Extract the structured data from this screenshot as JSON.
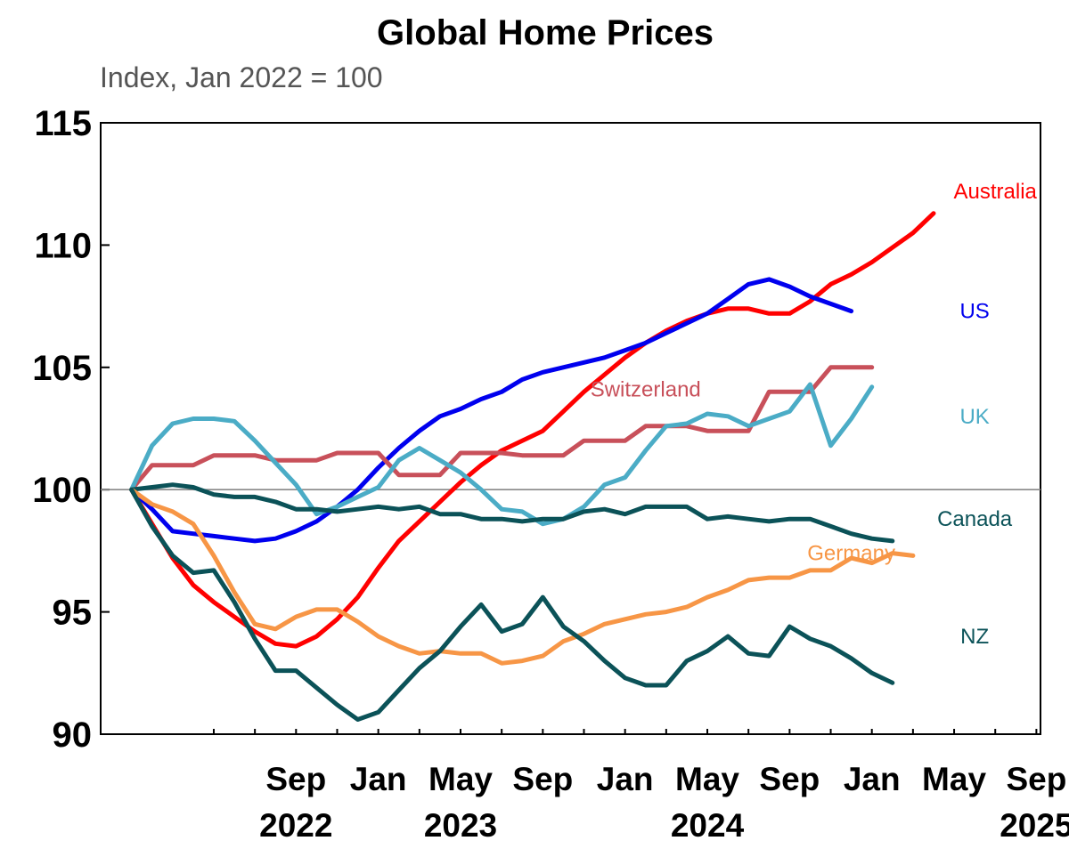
{
  "chart_data": {
    "type": "line",
    "title": "Global Home Prices",
    "subtitle": "Index, Jan 2022 = 100",
    "xlabel": "",
    "ylabel": "",
    "ylim": [
      90,
      115
    ],
    "yticks": [
      "90",
      "95",
      "100",
      "105",
      "110",
      "115"
    ],
    "ytick_values": [
      90,
      95,
      100,
      105,
      110,
      115
    ],
    "reference_line": 100,
    "grid": false,
    "legend": "inline labels at line ends",
    "x_start": "2022-05",
    "x_end": "2025-09",
    "xtick_labels": [
      {
        "month": "Sep",
        "year": "2022",
        "date": "2022-09"
      },
      {
        "month": "Jan",
        "year": "",
        "date": "2023-01"
      },
      {
        "month": "May",
        "year": "2023",
        "date": "2023-05"
      },
      {
        "month": "Sep",
        "year": "",
        "date": "2023-09"
      },
      {
        "month": "Jan",
        "year": "",
        "date": "2024-01"
      },
      {
        "month": "May",
        "year": "2024",
        "date": "2024-05"
      },
      {
        "month": "Sep",
        "year": "",
        "date": "2024-09"
      },
      {
        "month": "Jan",
        "year": "",
        "date": "2025-01"
      },
      {
        "month": "May",
        "year": "",
        "date": "2025-05"
      },
      {
        "month": "Sep",
        "year": "2025",
        "date": "2025-09"
      }
    ],
    "series": [
      {
        "name": "Australia",
        "color": "#ff0000",
        "label_at": "2025-07",
        "label_value": 112.2,
        "points": [
          [
            "2022-01",
            100
          ],
          [
            "2022-02",
            98.6
          ],
          [
            "2022-03",
            97.2
          ],
          [
            "2022-04",
            96.1
          ],
          [
            "2022-05",
            95.4
          ],
          [
            "2022-06",
            94.8
          ],
          [
            "2022-07",
            94.2
          ],
          [
            "2022-08",
            93.7
          ],
          [
            "2022-09",
            93.6
          ],
          [
            "2022-10",
            94.0
          ],
          [
            "2022-11",
            94.7
          ],
          [
            "2022-12",
            95.6
          ],
          [
            "2023-01",
            96.8
          ],
          [
            "2023-02",
            97.9
          ],
          [
            "2023-03",
            98.7
          ],
          [
            "2023-04",
            99.5
          ],
          [
            "2023-05",
            100.3
          ],
          [
            "2023-06",
            101.0
          ],
          [
            "2023-07",
            101.6
          ],
          [
            "2023-08",
            102.0
          ],
          [
            "2023-09",
            102.4
          ],
          [
            "2023-10",
            103.2
          ],
          [
            "2023-11",
            104.0
          ],
          [
            "2023-12",
            104.7
          ],
          [
            "2024-01",
            105.4
          ],
          [
            "2024-02",
            106.0
          ],
          [
            "2024-03",
            106.5
          ],
          [
            "2024-04",
            106.9
          ],
          [
            "2024-05",
            107.2
          ],
          [
            "2024-06",
            107.4
          ],
          [
            "2024-07",
            107.4
          ],
          [
            "2024-08",
            107.2
          ],
          [
            "2024-09",
            107.2
          ],
          [
            "2024-10",
            107.7
          ],
          [
            "2024-11",
            108.4
          ],
          [
            "2024-12",
            108.8
          ],
          [
            "2025-01",
            109.3
          ],
          [
            "2025-02",
            109.9
          ],
          [
            "2025-03",
            110.5
          ],
          [
            "2025-04",
            111.3
          ]
        ]
      },
      {
        "name": "US",
        "color": "#0000ee",
        "label_at": "2025-06",
        "label_value": 107.3,
        "points": [
          [
            "2022-01",
            100
          ],
          [
            "2022-02",
            99.2
          ],
          [
            "2022-03",
            98.3
          ],
          [
            "2022-04",
            98.2
          ],
          [
            "2022-05",
            98.1
          ],
          [
            "2022-06",
            98.0
          ],
          [
            "2022-07",
            97.9
          ],
          [
            "2022-08",
            98.0
          ],
          [
            "2022-09",
            98.3
          ],
          [
            "2022-10",
            98.7
          ],
          [
            "2022-11",
            99.3
          ],
          [
            "2022-12",
            100.0
          ],
          [
            "2023-01",
            100.9
          ],
          [
            "2023-02",
            101.7
          ],
          [
            "2023-03",
            102.4
          ],
          [
            "2023-04",
            103.0
          ],
          [
            "2023-05",
            103.3
          ],
          [
            "2023-06",
            103.7
          ],
          [
            "2023-07",
            104.0
          ],
          [
            "2023-08",
            104.5
          ],
          [
            "2023-09",
            104.8
          ],
          [
            "2023-10",
            105.0
          ],
          [
            "2023-11",
            105.2
          ],
          [
            "2023-12",
            105.4
          ],
          [
            "2024-01",
            105.7
          ],
          [
            "2024-02",
            106.0
          ],
          [
            "2024-03",
            106.4
          ],
          [
            "2024-04",
            106.8
          ],
          [
            "2024-05",
            107.2
          ],
          [
            "2024-06",
            107.8
          ],
          [
            "2024-07",
            108.4
          ],
          [
            "2024-08",
            108.6
          ],
          [
            "2024-09",
            108.3
          ],
          [
            "2024-10",
            107.9
          ],
          [
            "2024-11",
            107.6
          ],
          [
            "2024-12",
            107.3
          ]
        ]
      },
      {
        "name": "Switzerland",
        "color": "#c8505a",
        "label_at": "2024-02",
        "label_value": 104.1,
        "points": [
          [
            "2022-01",
            100
          ],
          [
            "2022-02",
            101.0
          ],
          [
            "2022-03",
            101.0
          ],
          [
            "2022-04",
            101.0
          ],
          [
            "2022-05",
            101.4
          ],
          [
            "2022-06",
            101.4
          ],
          [
            "2022-07",
            101.4
          ],
          [
            "2022-08",
            101.2
          ],
          [
            "2022-09",
            101.2
          ],
          [
            "2022-10",
            101.2
          ],
          [
            "2022-11",
            101.5
          ],
          [
            "2022-12",
            101.5
          ],
          [
            "2023-01",
            101.5
          ],
          [
            "2023-02",
            100.6
          ],
          [
            "2023-03",
            100.6
          ],
          [
            "2023-04",
            100.6
          ],
          [
            "2023-05",
            101.5
          ],
          [
            "2023-06",
            101.5
          ],
          [
            "2023-07",
            101.5
          ],
          [
            "2023-08",
            101.4
          ],
          [
            "2023-09",
            101.4
          ],
          [
            "2023-10",
            101.4
          ],
          [
            "2023-11",
            102.0
          ],
          [
            "2023-12",
            102.0
          ],
          [
            "2024-01",
            102.0
          ],
          [
            "2024-02",
            102.6
          ],
          [
            "2024-03",
            102.6
          ],
          [
            "2024-04",
            102.6
          ],
          [
            "2024-05",
            102.4
          ],
          [
            "2024-06",
            102.4
          ],
          [
            "2024-07",
            102.4
          ],
          [
            "2024-08",
            104.0
          ],
          [
            "2024-09",
            104.0
          ],
          [
            "2024-10",
            104.0
          ],
          [
            "2024-11",
            105.0
          ],
          [
            "2024-12",
            105.0
          ],
          [
            "2025-01",
            105.0
          ]
        ]
      },
      {
        "name": "UK",
        "color": "#4bacc6",
        "label_at": "2025-06",
        "label_value": 103.0,
        "points": [
          [
            "2022-01",
            100
          ],
          [
            "2022-02",
            101.8
          ],
          [
            "2022-03",
            102.7
          ],
          [
            "2022-04",
            102.9
          ],
          [
            "2022-05",
            102.9
          ],
          [
            "2022-06",
            102.8
          ],
          [
            "2022-07",
            102.0
          ],
          [
            "2022-08",
            101.1
          ],
          [
            "2022-09",
            100.2
          ],
          [
            "2022-10",
            99.0
          ],
          [
            "2022-11",
            99.3
          ],
          [
            "2022-12",
            99.7
          ],
          [
            "2023-01",
            100.1
          ],
          [
            "2023-02",
            101.2
          ],
          [
            "2023-03",
            101.7
          ],
          [
            "2023-04",
            101.2
          ],
          [
            "2023-05",
            100.7
          ],
          [
            "2023-06",
            100.0
          ],
          [
            "2023-07",
            99.2
          ],
          [
            "2023-08",
            99.1
          ],
          [
            "2023-09",
            98.6
          ],
          [
            "2023-10",
            98.8
          ],
          [
            "2023-11",
            99.3
          ],
          [
            "2023-12",
            100.2
          ],
          [
            "2024-01",
            100.5
          ],
          [
            "2024-02",
            101.6
          ],
          [
            "2024-03",
            102.6
          ],
          [
            "2024-04",
            102.7
          ],
          [
            "2024-05",
            103.1
          ],
          [
            "2024-06",
            103.0
          ],
          [
            "2024-07",
            102.6
          ],
          [
            "2024-08",
            102.9
          ],
          [
            "2024-09",
            103.2
          ],
          [
            "2024-10",
            104.3
          ],
          [
            "2024-11",
            101.8
          ],
          [
            "2024-12",
            102.9
          ],
          [
            "2025-01",
            104.2
          ]
        ]
      },
      {
        "name": "Canada",
        "color": "#0b5258",
        "label_at": "2025-06",
        "label_value": 98.8,
        "points": [
          [
            "2022-01",
            100
          ],
          [
            "2022-02",
            100.1
          ],
          [
            "2022-03",
            100.2
          ],
          [
            "2022-04",
            100.1
          ],
          [
            "2022-05",
            99.8
          ],
          [
            "2022-06",
            99.7
          ],
          [
            "2022-07",
            99.7
          ],
          [
            "2022-08",
            99.5
          ],
          [
            "2022-09",
            99.2
          ],
          [
            "2022-10",
            99.2
          ],
          [
            "2022-11",
            99.1
          ],
          [
            "2022-12",
            99.2
          ],
          [
            "2023-01",
            99.3
          ],
          [
            "2023-02",
            99.2
          ],
          [
            "2023-03",
            99.3
          ],
          [
            "2023-04",
            99.0
          ],
          [
            "2023-05",
            99.0
          ],
          [
            "2023-06",
            98.8
          ],
          [
            "2023-07",
            98.8
          ],
          [
            "2023-08",
            98.7
          ],
          [
            "2023-09",
            98.8
          ],
          [
            "2023-10",
            98.8
          ],
          [
            "2023-11",
            99.1
          ],
          [
            "2023-12",
            99.2
          ],
          [
            "2024-01",
            99.0
          ],
          [
            "2024-02",
            99.3
          ],
          [
            "2024-03",
            99.3
          ],
          [
            "2024-04",
            99.3
          ],
          [
            "2024-05",
            98.8
          ],
          [
            "2024-06",
            98.9
          ],
          [
            "2024-07",
            98.8
          ],
          [
            "2024-08",
            98.7
          ],
          [
            "2024-09",
            98.8
          ],
          [
            "2024-10",
            98.8
          ],
          [
            "2024-11",
            98.5
          ],
          [
            "2024-12",
            98.2
          ],
          [
            "2025-01",
            98.0
          ],
          [
            "2025-02",
            97.9
          ]
        ]
      },
      {
        "name": "Germany",
        "color": "#f79646",
        "label_at": "2024-12",
        "label_value": 97.4,
        "points": [
          [
            "2022-01",
            100
          ],
          [
            "2022-02",
            99.4
          ],
          [
            "2022-03",
            99.1
          ],
          [
            "2022-04",
            98.6
          ],
          [
            "2022-05",
            97.3
          ],
          [
            "2022-06",
            95.8
          ],
          [
            "2022-07",
            94.5
          ],
          [
            "2022-08",
            94.3
          ],
          [
            "2022-09",
            94.8
          ],
          [
            "2022-10",
            95.1
          ],
          [
            "2022-11",
            95.1
          ],
          [
            "2022-12",
            94.6
          ],
          [
            "2023-01",
            94.0
          ],
          [
            "2023-02",
            93.6
          ],
          [
            "2023-03",
            93.3
          ],
          [
            "2023-04",
            93.4
          ],
          [
            "2023-05",
            93.3
          ],
          [
            "2023-06",
            93.3
          ],
          [
            "2023-07",
            92.9
          ],
          [
            "2023-08",
            93.0
          ],
          [
            "2023-09",
            93.2
          ],
          [
            "2023-10",
            93.8
          ],
          [
            "2023-11",
            94.1
          ],
          [
            "2023-12",
            94.5
          ],
          [
            "2024-01",
            94.7
          ],
          [
            "2024-02",
            94.9
          ],
          [
            "2024-03",
            95.0
          ],
          [
            "2024-04",
            95.2
          ],
          [
            "2024-05",
            95.6
          ],
          [
            "2024-06",
            95.9
          ],
          [
            "2024-07",
            96.3
          ],
          [
            "2024-08",
            96.4
          ],
          [
            "2024-09",
            96.4
          ],
          [
            "2024-10",
            96.7
          ],
          [
            "2024-11",
            96.7
          ],
          [
            "2024-12",
            97.2
          ],
          [
            "2025-01",
            97.0
          ],
          [
            "2025-02",
            97.4
          ],
          [
            "2025-03",
            97.3
          ]
        ]
      },
      {
        "name": "NZ",
        "color": "#0b5258",
        "label_at": "2025-06",
        "label_value": 94.0,
        "points": [
          [
            "2022-01",
            100
          ],
          [
            "2022-02",
            98.5
          ],
          [
            "2022-03",
            97.3
          ],
          [
            "2022-04",
            96.6
          ],
          [
            "2022-05",
            96.7
          ],
          [
            "2022-06",
            95.4
          ],
          [
            "2022-07",
            93.9
          ],
          [
            "2022-08",
            92.6
          ],
          [
            "2022-09",
            92.6
          ],
          [
            "2022-10",
            91.9
          ],
          [
            "2022-11",
            91.2
          ],
          [
            "2022-12",
            90.6
          ],
          [
            "2023-01",
            90.9
          ],
          [
            "2023-02",
            91.8
          ],
          [
            "2023-03",
            92.7
          ],
          [
            "2023-04",
            93.4
          ],
          [
            "2023-05",
            94.4
          ],
          [
            "2023-06",
            95.3
          ],
          [
            "2023-07",
            94.2
          ],
          [
            "2023-08",
            94.5
          ],
          [
            "2023-09",
            95.6
          ],
          [
            "2023-10",
            94.4
          ],
          [
            "2023-11",
            93.8
          ],
          [
            "2023-12",
            93.0
          ],
          [
            "2024-01",
            92.3
          ],
          [
            "2024-02",
            92.0
          ],
          [
            "2024-03",
            92.0
          ],
          [
            "2024-04",
            93.0
          ],
          [
            "2024-05",
            93.4
          ],
          [
            "2024-06",
            94.0
          ],
          [
            "2024-07",
            93.3
          ],
          [
            "2024-08",
            93.2
          ],
          [
            "2024-09",
            94.4
          ],
          [
            "2024-10",
            93.9
          ],
          [
            "2024-11",
            93.6
          ],
          [
            "2024-12",
            93.1
          ],
          [
            "2025-01",
            92.5
          ],
          [
            "2025-02",
            92.1
          ]
        ]
      }
    ]
  }
}
